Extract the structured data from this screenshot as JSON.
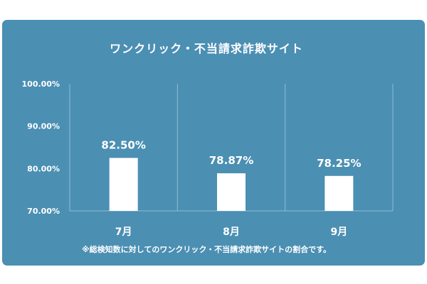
{
  "chart_data": {
    "type": "bar",
    "title": "ワンクリック・不当請求詐欺サイト",
    "categories": [
      "7月",
      "8月",
      "9月"
    ],
    "values": [
      82.5,
      78.87,
      78.25
    ],
    "value_labels": [
      "82.50%",
      "78.87%",
      "78.25%"
    ],
    "yticks": [
      "70.00%",
      "80.00%",
      "90.00%",
      "100.00%"
    ],
    "ylim": [
      70,
      100
    ],
    "grid": true,
    "footnote": "※総検知数に対してのワンクリック・不当請求詐欺サイトの割合です。"
  },
  "colors": {
    "background": "#4b8fb3",
    "bar": "#ffffff",
    "text": "#ffffff",
    "grid": "#8fbdd6"
  }
}
